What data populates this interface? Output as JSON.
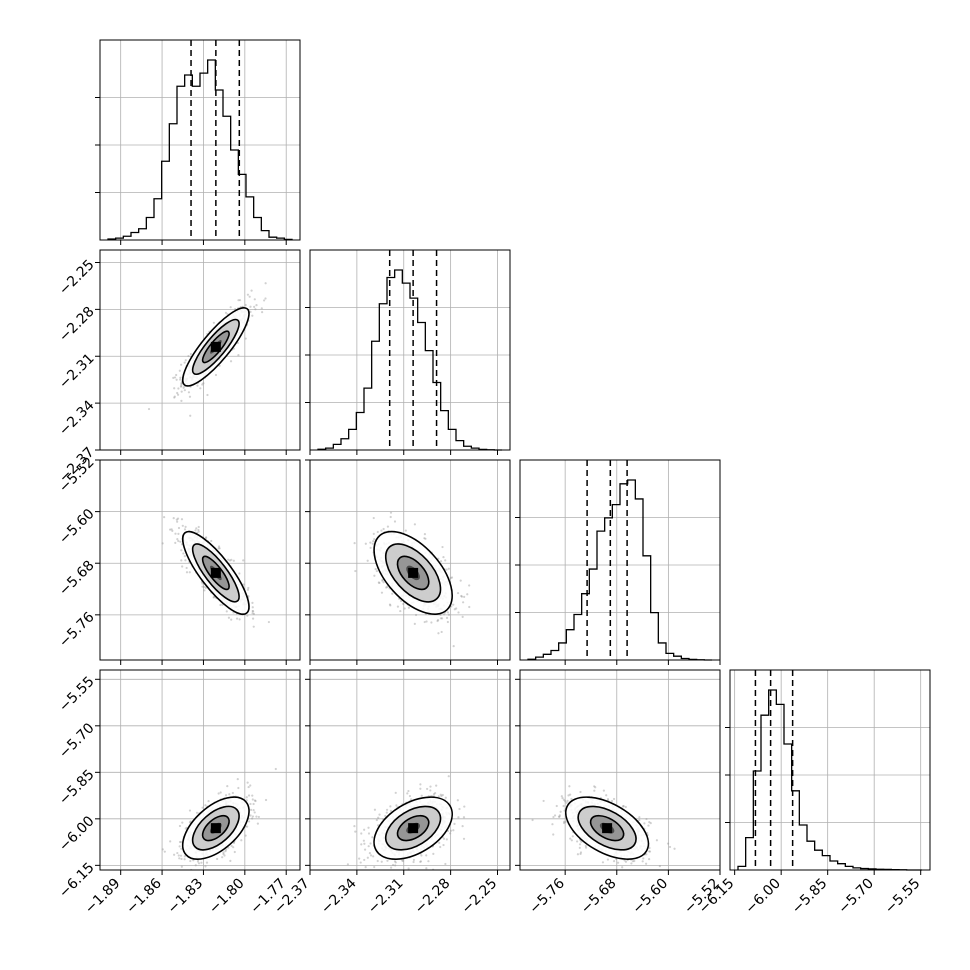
{
  "chart_data": {
    "type": "corner",
    "grid": true,
    "parameters": [
      {
        "id": "p0",
        "ticks": [
          "−1.89",
          "−1.86",
          "−1.83",
          "−1.80",
          "−1.77"
        ],
        "tick_values": [
          -1.89,
          -1.86,
          -1.83,
          -1.8,
          -1.77
        ],
        "range": [
          -1.905,
          -1.76
        ]
      },
      {
        "id": "p1",
        "ticks": [
          "−2.37",
          "−2.34",
          "−2.31",
          "−2.28",
          "−2.25"
        ],
        "tick_values": [
          -2.37,
          -2.34,
          -2.31,
          -2.28,
          -2.25
        ],
        "range": [
          -2.37,
          -2.242
        ]
      },
      {
        "id": "p2",
        "ticks": [
          "−5.76",
          "−5.68",
          "−5.60",
          "−5.52"
        ],
        "tick_values": [
          -5.76,
          -5.68,
          -5.6,
          -5.52
        ],
        "range": [
          -5.83,
          -5.52
        ]
      },
      {
        "id": "p3",
        "ticks": [
          "−6.15",
          "−6.00",
          "−5.85",
          "−5.70",
          "−5.55"
        ],
        "tick_values": [
          -6.15,
          -6.0,
          -5.85,
          -5.7,
          -5.55
        ],
        "range": [
          -6.165,
          -5.52
        ]
      }
    ],
    "y_ticks": {
      "p1": {
        "labels": [
          "−2.37",
          "−2.34",
          "−2.31",
          "−2.28",
          "−2.25"
        ],
        "values": [
          -2.37,
          -2.34,
          -2.31,
          -2.28,
          -2.25
        ]
      },
      "p2": {
        "labels": [
          "−5.52",
          "−5.60",
          "−5.68",
          "−5.76"
        ],
        "values": [
          -5.52,
          -5.6,
          -5.68,
          -5.76
        ]
      },
      "p3": {
        "labels": [
          "−5.55",
          "−5.70",
          "−5.85",
          "−6.00",
          "−6.15"
        ],
        "values": [
          -5.55,
          -5.7,
          -5.85,
          -6.0,
          -6.15
        ]
      }
    },
    "quantiles": {
      "p0": [
        -1.839,
        -1.821,
        -1.804
      ],
      "p1": [
        -2.319,
        -2.304,
        -2.289
      ],
      "p2": [
        -5.726,
        -5.69,
        -5.664
      ],
      "p3": [
        -6.083,
        -6.034,
        -5.963
      ]
    },
    "histograms": {
      "p0": [
        0.005,
        0.01,
        0.02,
        0.04,
        0.06,
        0.12,
        0.22,
        0.42,
        0.62,
        0.82,
        0.88,
        0.82,
        0.89,
        0.96,
        0.8,
        0.66,
        0.48,
        0.35,
        0.23,
        0.12,
        0.05,
        0.015,
        0.01,
        0.003
      ],
      "p1": [
        0.004,
        0.01,
        0.03,
        0.06,
        0.11,
        0.2,
        0.33,
        0.58,
        0.78,
        0.92,
        0.96,
        0.89,
        0.81,
        0.68,
        0.53,
        0.36,
        0.21,
        0.11,
        0.05,
        0.02,
        0.01,
        0.003,
        0.001,
        0.0
      ],
      "p2": [
        0.004,
        0.015,
        0.03,
        0.05,
        0.09,
        0.16,
        0.24,
        0.35,
        0.48,
        0.68,
        0.75,
        0.82,
        0.93,
        0.95,
        0.85,
        0.55,
        0.25,
        0.09,
        0.035,
        0.02,
        0.008,
        0.003,
        0.001,
        0.0
      ],
      "p3": [
        0.02,
        0.18,
        0.55,
        0.86,
        1.0,
        0.92,
        0.7,
        0.44,
        0.25,
        0.16,
        0.11,
        0.08,
        0.05,
        0.035,
        0.02,
        0.012,
        0.008,
        0.006,
        0.004,
        0.003,
        0.002,
        0.001,
        0.0,
        0.0
      ]
    },
    "correlations": {
      "p1|p0": 0.85,
      "p2|p0": -0.82,
      "p2|p1": -0.55,
      "p3|p0": 0.55,
      "p3|p1": 0.45,
      "p3|p2": -0.5
    },
    "spread": {
      "p0": 0.012,
      "p1": 0.0125,
      "p2": 0.032,
      "p3": 0.05
    },
    "means": {
      "p0": -1.821,
      "p1": -2.304,
      "p2": -5.695,
      "p3": -6.03
    },
    "colors": {
      "line": "#000000",
      "grid": "#b0b0b0",
      "scatter": "#9a9a9a",
      "frame": "#000000"
    }
  }
}
